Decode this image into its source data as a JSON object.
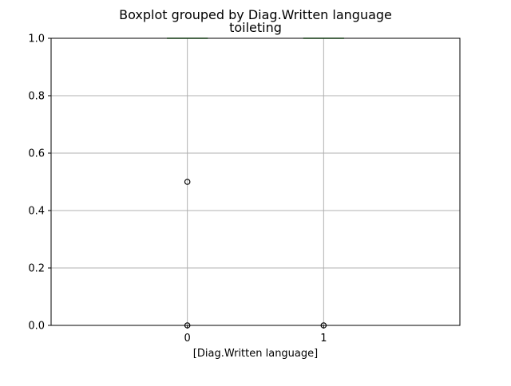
{
  "chart_data": {
    "type": "boxplot",
    "suptitle": "Boxplot grouped by Diag.Written language",
    "title": "toileting",
    "xlabel": "[Diag.Written language]",
    "ylabel": "",
    "categories": [
      "0",
      "1"
    ],
    "ylim": [
      0.0,
      1.0
    ],
    "yticks": [
      0.0,
      0.2,
      0.4,
      0.6,
      0.8,
      1.0
    ],
    "ytick_labels": [
      "0.0",
      "0.2",
      "0.4",
      "0.6",
      "0.8",
      "1.0"
    ],
    "grid": true,
    "boxes": [
      {
        "category": "0",
        "whisker_low": 1.0,
        "q1": 1.0,
        "median": 1.0,
        "q3": 1.0,
        "whisker_high": 1.0,
        "fliers": [
          0.5,
          0.0
        ]
      },
      {
        "category": "1",
        "whisker_low": 1.0,
        "q1": 1.0,
        "median": 1.0,
        "q3": 1.0,
        "whisker_high": 1.0,
        "fliers": [
          0.0
        ]
      }
    ],
    "colors": {
      "box": "#1f77b4",
      "median": "#2ca02c",
      "grid": "#b0b0b0",
      "flier_edge": "#000000"
    }
  }
}
